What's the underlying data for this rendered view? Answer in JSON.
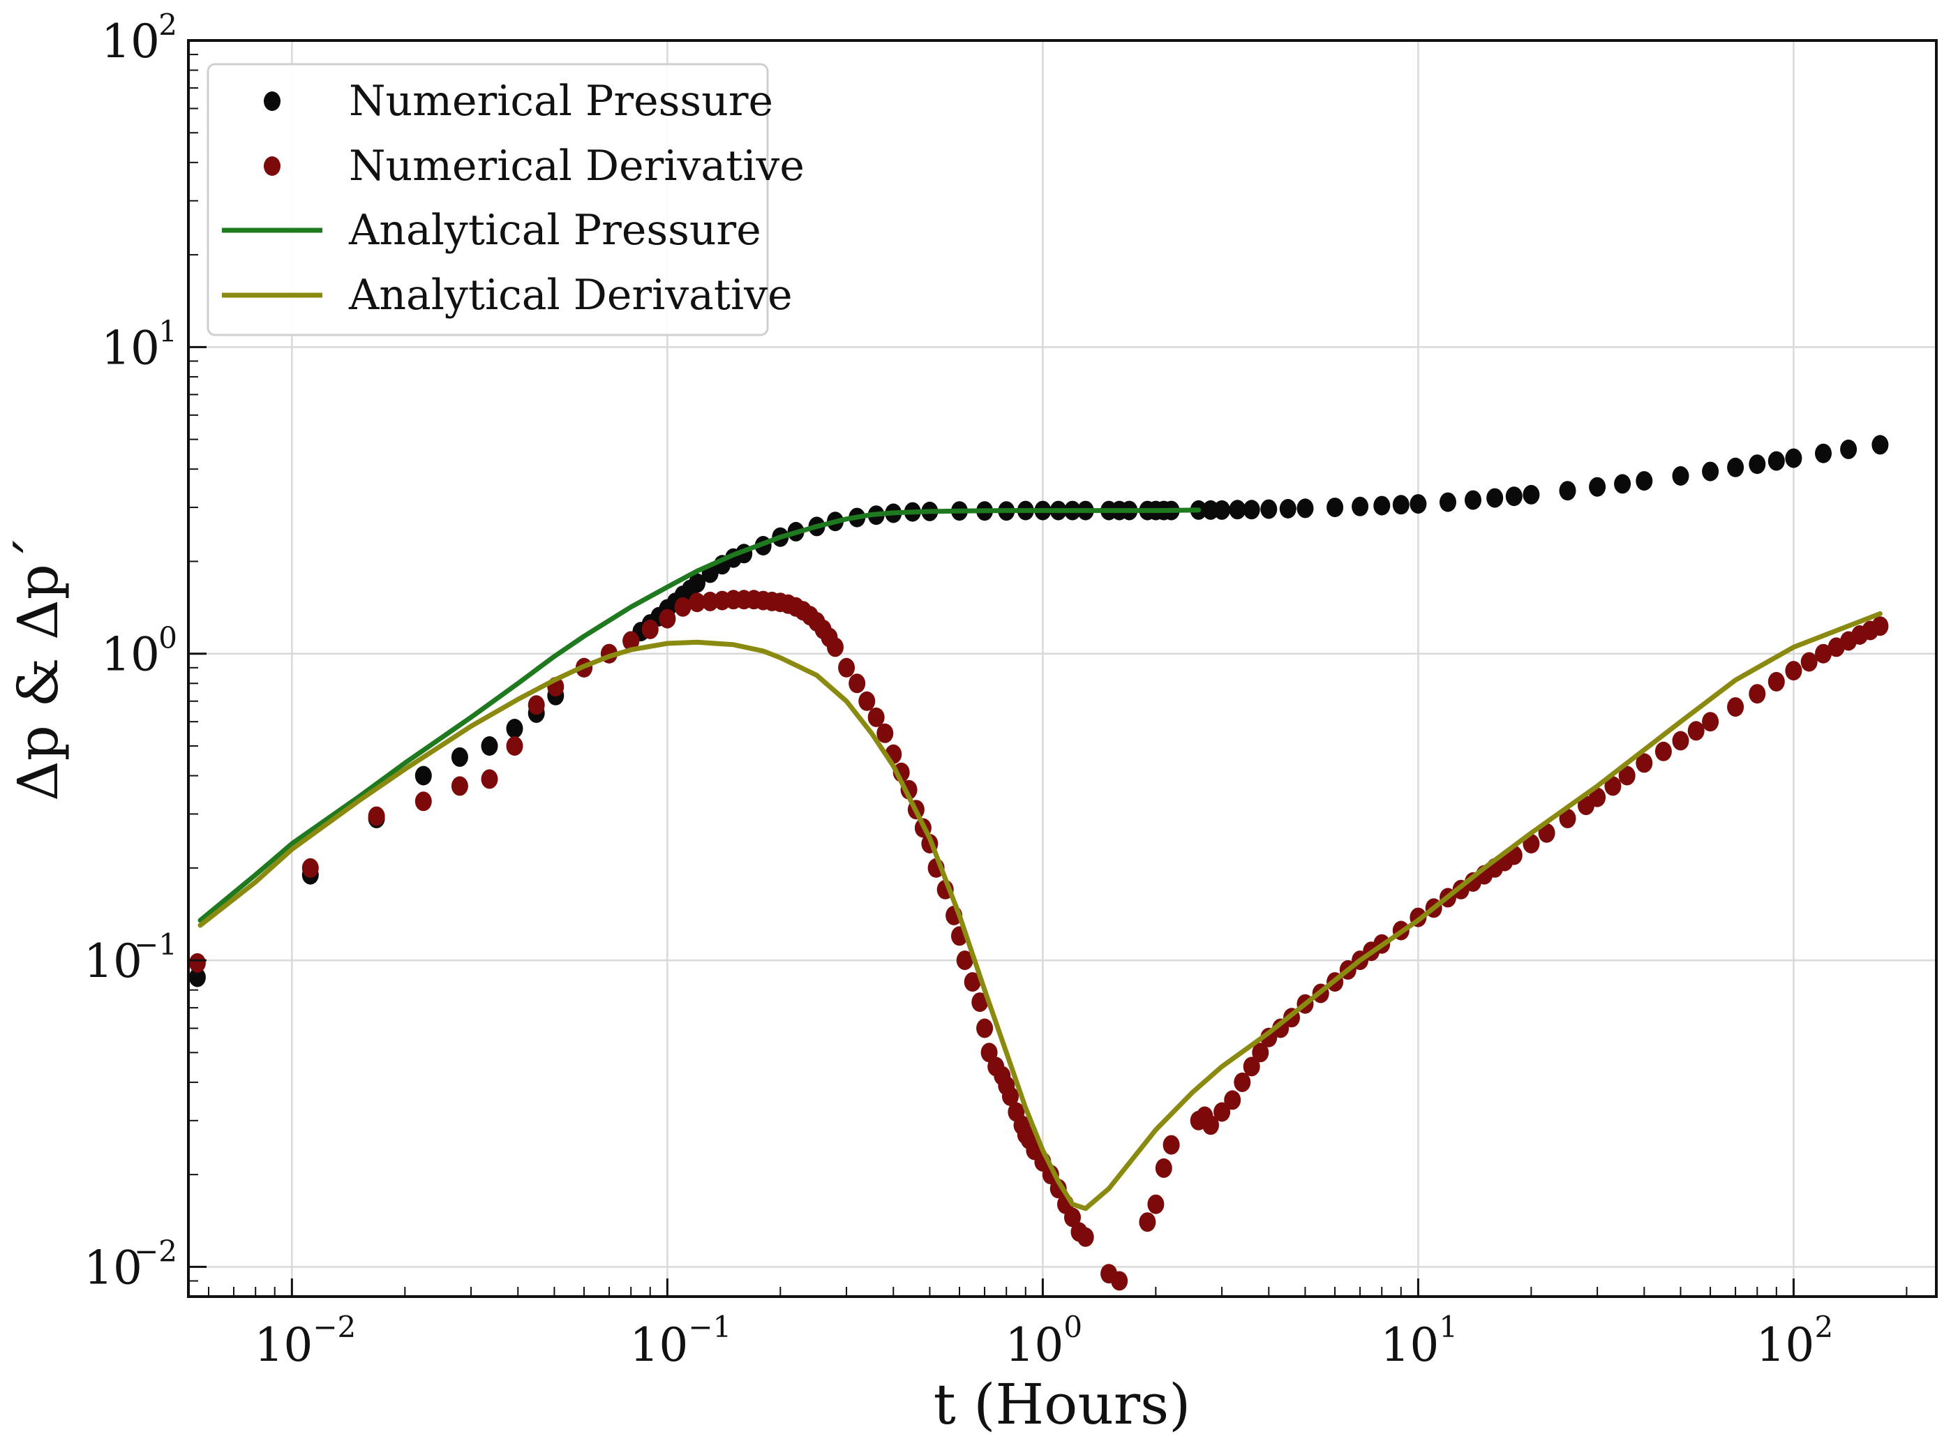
{
  "chart_data": {
    "type": "scatter",
    "title": "",
    "xlabel": "t (Hours)",
    "ylabel": "Δp & Δp´",
    "x_scale": "log",
    "y_scale": "log",
    "xlim": [
      0.0053,
      240
    ],
    "ylim": [
      0.008,
      100
    ],
    "grid": true,
    "legend_position": "top-left",
    "x_ticks": [
      {
        "value": 0.01,
        "base": "10",
        "exp": "−2"
      },
      {
        "value": 0.1,
        "base": "10",
        "exp": "−1"
      },
      {
        "value": 1,
        "base": "10",
        "exp": "0"
      },
      {
        "value": 10,
        "base": "10",
        "exp": "1"
      },
      {
        "value": 100,
        "base": "10",
        "exp": "2"
      }
    ],
    "y_ticks": [
      {
        "value": 0.01,
        "base": "10",
        "exp": "−2"
      },
      {
        "value": 0.1,
        "base": "10",
        "exp": "−1"
      },
      {
        "value": 1,
        "base": "10",
        "exp": "0"
      },
      {
        "value": 10,
        "base": "10",
        "exp": "1"
      },
      {
        "value": 100,
        "base": "10",
        "exp": "2"
      }
    ],
    "series": [
      {
        "name": "Numerical Pressure",
        "kind": "points",
        "color": "#0a0a0a",
        "x": [
          0.0056,
          0.0112,
          0.0168,
          0.0224,
          0.028,
          0.0336,
          0.0392,
          0.0448,
          0.0504,
          0.06,
          0.07,
          0.08,
          0.085,
          0.09,
          0.095,
          0.1,
          0.105,
          0.11,
          0.115,
          0.12,
          0.13,
          0.14,
          0.15,
          0.16,
          0.18,
          0.2,
          0.22,
          0.25,
          0.28,
          0.32,
          0.36,
          0.4,
          0.45,
          0.5,
          0.6,
          0.7,
          0.8,
          0.9,
          1.0,
          1.1,
          1.2,
          1.3,
          1.5,
          1.6,
          1.7,
          1.9,
          2.0,
          2.1,
          2.2,
          2.6,
          2.8,
          3.0,
          3.3,
          3.6,
          4.0,
          4.5,
          5,
          6,
          7,
          8,
          9,
          10,
          12,
          14,
          16,
          18,
          20,
          25,
          30,
          35,
          40,
          50,
          60,
          70,
          80,
          90,
          100,
          120,
          140,
          170
        ],
        "y": [
          0.088,
          0.19,
          0.29,
          0.4,
          0.46,
          0.5,
          0.57,
          0.64,
          0.73,
          0.9,
          1.0,
          1.1,
          1.18,
          1.25,
          1.32,
          1.4,
          1.47,
          1.55,
          1.62,
          1.7,
          1.83,
          1.95,
          2.05,
          2.12,
          2.25,
          2.4,
          2.5,
          2.6,
          2.7,
          2.78,
          2.83,
          2.87,
          2.9,
          2.91,
          2.92,
          2.92,
          2.92,
          2.93,
          2.93,
          2.93,
          2.93,
          2.93,
          2.93,
          2.93,
          2.93,
          2.93,
          2.93,
          2.93,
          2.93,
          2.94,
          2.94,
          2.94,
          2.95,
          2.95,
          2.96,
          2.97,
          2.98,
          3.0,
          3.02,
          3.04,
          3.06,
          3.08,
          3.12,
          3.17,
          3.22,
          3.26,
          3.3,
          3.4,
          3.5,
          3.58,
          3.66,
          3.8,
          3.93,
          4.05,
          4.15,
          4.25,
          4.34,
          4.5,
          4.64,
          4.8
        ]
      },
      {
        "name": "Numerical Derivative",
        "kind": "points",
        "color": "#7d0a0a",
        "x": [
          0.0056,
          0.0112,
          0.0168,
          0.0224,
          0.028,
          0.0336,
          0.0392,
          0.0448,
          0.0504,
          0.06,
          0.07,
          0.08,
          0.09,
          0.1,
          0.11,
          0.12,
          0.13,
          0.14,
          0.15,
          0.16,
          0.17,
          0.18,
          0.19,
          0.2,
          0.21,
          0.22,
          0.23,
          0.24,
          0.25,
          0.26,
          0.27,
          0.28,
          0.3,
          0.32,
          0.34,
          0.36,
          0.38,
          0.4,
          0.42,
          0.44,
          0.46,
          0.48,
          0.5,
          0.52,
          0.55,
          0.58,
          0.6,
          0.62,
          0.65,
          0.68,
          0.7,
          0.72,
          0.75,
          0.78,
          0.8,
          0.82,
          0.85,
          0.88,
          0.9,
          0.92,
          0.95,
          1.0,
          1.05,
          1.1,
          1.15,
          1.2,
          1.25,
          1.3,
          1.5,
          1.6,
          1.9,
          2.0,
          2.1,
          2.2,
          2.6,
          2.7,
          2.8,
          3.0,
          3.2,
          3.4,
          3.6,
          3.8,
          4.0,
          4.3,
          4.6,
          5.0,
          5.5,
          6,
          6.5,
          7,
          7.5,
          8,
          9,
          10,
          11,
          12,
          13,
          14,
          15,
          16,
          17,
          18,
          20,
          22,
          25,
          28,
          30,
          33,
          36,
          40,
          45,
          50,
          55,
          60,
          70,
          80,
          90,
          100,
          110,
          120,
          130,
          140,
          150,
          160,
          170
        ],
        "y": [
          0.098,
          0.2,
          0.295,
          0.33,
          0.37,
          0.39,
          0.5,
          0.68,
          0.78,
          0.9,
          1.0,
          1.1,
          1.2,
          1.3,
          1.42,
          1.47,
          1.48,
          1.49,
          1.5,
          1.5,
          1.5,
          1.49,
          1.48,
          1.47,
          1.45,
          1.42,
          1.38,
          1.33,
          1.27,
          1.2,
          1.13,
          1.05,
          0.9,
          0.8,
          0.7,
          0.62,
          0.55,
          0.47,
          0.41,
          0.36,
          0.31,
          0.27,
          0.24,
          0.2,
          0.17,
          0.14,
          0.12,
          0.1,
          0.085,
          0.073,
          0.06,
          0.05,
          0.045,
          0.042,
          0.039,
          0.036,
          0.032,
          0.029,
          0.027,
          0.026,
          0.024,
          0.022,
          0.02,
          0.018,
          0.016,
          0.0145,
          0.013,
          0.0125,
          0.0095,
          0.009,
          0.014,
          0.016,
          0.021,
          0.025,
          0.03,
          0.031,
          0.029,
          0.032,
          0.035,
          0.04,
          0.045,
          0.05,
          0.056,
          0.06,
          0.065,
          0.072,
          0.078,
          0.085,
          0.093,
          0.1,
          0.107,
          0.113,
          0.125,
          0.138,
          0.148,
          0.16,
          0.17,
          0.18,
          0.19,
          0.2,
          0.21,
          0.22,
          0.24,
          0.26,
          0.29,
          0.32,
          0.34,
          0.37,
          0.4,
          0.44,
          0.48,
          0.52,
          0.56,
          0.6,
          0.67,
          0.74,
          0.81,
          0.88,
          0.94,
          1.0,
          1.05,
          1.1,
          1.15,
          1.19,
          1.23
        ]
      },
      {
        "name": "Analytical Pressure",
        "kind": "line",
        "color": "#1f7a1f",
        "x": [
          0.0057,
          0.008,
          0.01,
          0.015,
          0.02,
          0.03,
          0.04,
          0.05,
          0.06,
          0.08,
          0.1,
          0.12,
          0.15,
          0.2,
          0.25,
          0.3,
          0.35,
          0.4,
          0.5,
          0.6,
          0.8,
          1.0,
          1.3,
          2.0,
          2.6
        ],
        "y": [
          0.135,
          0.19,
          0.24,
          0.34,
          0.44,
          0.62,
          0.8,
          0.98,
          1.14,
          1.42,
          1.65,
          1.86,
          2.1,
          2.4,
          2.6,
          2.75,
          2.84,
          2.88,
          2.91,
          2.92,
          2.93,
          2.93,
          2.93,
          2.93,
          2.94
        ]
      },
      {
        "name": "Analytical Derivative",
        "kind": "line",
        "color": "#8a8a10",
        "x": [
          0.0057,
          0.008,
          0.01,
          0.015,
          0.02,
          0.03,
          0.04,
          0.05,
          0.06,
          0.07,
          0.08,
          0.1,
          0.12,
          0.15,
          0.18,
          0.2,
          0.25,
          0.3,
          0.35,
          0.4,
          0.5,
          0.6,
          0.7,
          0.8,
          0.9,
          1.0,
          1.1,
          1.2,
          1.3,
          1.5,
          2.0,
          2.5,
          3.0,
          4.0,
          5.0,
          7.0,
          10,
          15,
          20,
          30,
          50,
          70,
          100,
          170
        ],
        "y": [
          0.13,
          0.18,
          0.23,
          0.33,
          0.42,
          0.58,
          0.71,
          0.82,
          0.91,
          0.98,
          1.03,
          1.08,
          1.09,
          1.07,
          1.02,
          0.97,
          0.85,
          0.7,
          0.55,
          0.43,
          0.25,
          0.14,
          0.08,
          0.05,
          0.033,
          0.024,
          0.019,
          0.016,
          0.0155,
          0.018,
          0.028,
          0.037,
          0.045,
          0.058,
          0.072,
          0.1,
          0.135,
          0.2,
          0.26,
          0.37,
          0.6,
          0.82,
          1.05,
          1.35
        ]
      }
    ]
  }
}
